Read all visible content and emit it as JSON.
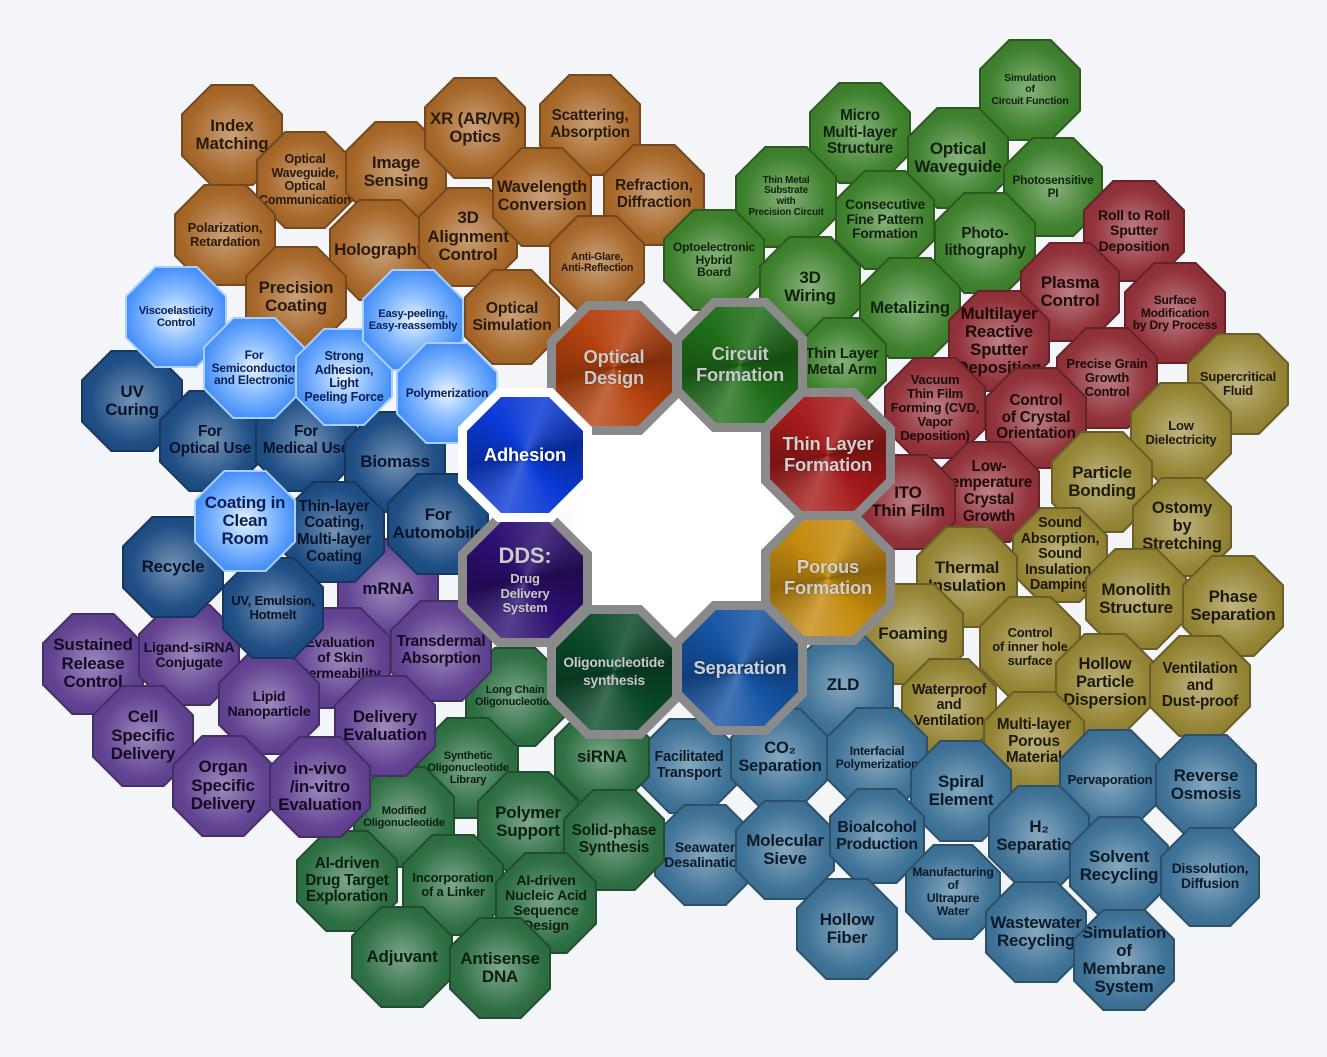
{
  "hubs": [
    {
      "label": "Optical\nDesign",
      "color": "#b5420f",
      "text": "#c9c9c9"
    },
    {
      "label": "Circuit\nFormation",
      "color": "#1f6e1a",
      "text": "#c9c9c9"
    },
    {
      "label": "Thin Layer\nFormation",
      "color": "#a51a1a",
      "text": "#d0d0d0"
    },
    {
      "label": "Porous\nFormation",
      "color": "#c48a0e",
      "text": "#d0d0d0"
    },
    {
      "label": "Separation",
      "color": "#1553a3",
      "text": "#d0d0d0"
    },
    {
      "label": "Oligonucleotide\nsynthesis",
      "color": "#0b4a2a",
      "text": "#c9c9c9"
    },
    {
      "label": "DDS:",
      "sub": "Drug\nDelivery\nSystem",
      "color": "#2c0f70",
      "text": "#c9c9c9"
    },
    {
      "label": "Adhesion",
      "color": "#0a3ad6",
      "text": "#ffffff"
    }
  ],
  "groups": [
    {
      "name": "optical",
      "color": "#a8682a",
      "text": "#2a1a0a",
      "nodes": [
        "Index\nMatching",
        "Optical\nWaveguide,\nOptical\nCommunication",
        "Image\nSensing",
        "XR (AR/VR)\nOptics",
        "Scattering,\nAbsorption",
        "Polarization,\nRetardation",
        "Holography",
        "3D\nAlignment\nControl",
        "Wavelength\nConversion",
        "Refraction,\nDiffraction",
        "Anti-Glare,\nAnti-Reflection",
        "Precision\nCoating",
        "Optical\nSimulation"
      ]
    },
    {
      "name": "circuit",
      "color": "#3f822e",
      "text": "#10220a",
      "nodes": [
        "Simulation\nof\nCircuit Function",
        "Micro\nMulti-layer\nStructure",
        "Optical\nWaveguide",
        "Photosensitive\nPI",
        "Thin Metal\nSubstrate\nwith\nPrecision Circuit",
        "Consecutive\nFine Pattern\nFormation",
        "Photo-\nlithography",
        "Optoelectronic\nHybrid\nBoard",
        "3D\nWiring",
        "Metalizing",
        "Thin Layer\nMetal Arm"
      ]
    },
    {
      "name": "thinlayer",
      "color": "#93323a",
      "text": "#1e0a0a",
      "nodes": [
        "Roll to Roll\nSputter\nDeposition",
        "Plasma\nControl",
        "Surface\nModification\nby Dry Process",
        "Multilayer\nReactive\nSputter\nDeposition",
        "Precise Grain\nGrowth\nControl",
        "Vacuum\nThin Film\nForming (CVD,\nVapor\nDeposition)",
        "Control\nof Crystal\nOrientation",
        "Low-\ntemperature\nCrystal\nGrowth",
        "ITO\nThin Film"
      ]
    },
    {
      "name": "porous",
      "color": "#968636",
      "text": "#1e1a08",
      "nodes": [
        "Supercritical\nFluid",
        "Low\nDielectricity",
        "Particle\nBonding",
        "Ostomy\nby\nStretching",
        "Sound\nAbsorption,\nSound\nInsulation,\nDamping",
        "Thermal\nInsulation",
        "Monolith\nStructure",
        "Phase\nSeparation",
        "Foaming",
        "Control\nof inner hole\nsurface",
        "Hollow\nParticle\nDispersion",
        "Ventilation\nand\nDust-proof",
        "Waterproof\nand\nVentilation",
        "Multi-layer\nPorous\nMaterial"
      ]
    },
    {
      "name": "separation",
      "color": "#3f7398",
      "text": "#0a1a28",
      "nodes": [
        "ZLD",
        "Facilitated\nTransport",
        "CO₂\nSeparation",
        "Interfacial\nPolymerization",
        "Spiral\nElement",
        "Pervaporation",
        "Reverse\nOsmosis",
        "Seawater\nDesalination",
        "Molecular\nSieve",
        "Bioalcohol\nProduction",
        "H₂\nSeparation",
        "Solvent\nRecycling",
        "Dissolution,\nDiffusion",
        "Manufacturing\nof\nUltrapure\nWater",
        "Hollow\nFiber",
        "Wastewater\nRecycling",
        "Simulation\nof\nMembrane\nSystem"
      ]
    },
    {
      "name": "oligo",
      "color": "#2f7044",
      "text": "#08200f",
      "nodes": [
        "Long Chain\nOligonucleotide",
        "Synthetic\nOligonucleotide\nLibrary",
        "siRNA",
        "Polymer\nSupport",
        "Solid-phase\nSynthesis",
        "Modified\nOligonucleotide",
        "AI-driven\nDrug Target\nExploration",
        "Incorporation\nof a Linker",
        "AI-driven\nNucleic Acid\nSequence\nDesign",
        "Adjuvant",
        "Antisense\nDNA"
      ]
    },
    {
      "name": "dds",
      "color": "#634393",
      "text": "#140a24",
      "nodes": [
        "mRNA",
        "Transdermal\nAbsorption",
        "Sustained\nRelease\nControl",
        "Ligand-siRNA\nConjugate",
        "Evaluation\nof Skin\nPermeability",
        "Lipid\nNanoparticle",
        "Cell\nSpecific\nDelivery",
        "Delivery\nEvaluation",
        "Organ\nSpecific\nDelivery",
        "in-vivo\n/in-vitro\nEvaluation"
      ]
    },
    {
      "name": "adhesion-navy",
      "color": "#1f4f86",
      "text": "#06142a",
      "nodes": [
        "UV\nCuring",
        "For\nOptical Use",
        "For\nMedical Use",
        "Biomass",
        "Thin-layer\nCoating,\nMulti-layer\nCoating",
        "For\nAutomobile",
        "Recycle",
        "UV, Emulsion,\nHotmelt"
      ]
    },
    {
      "name": "adhesion-bright",
      "color": "#2f80f5",
      "text": "#0a1e55",
      "nodes": [
        "Viscoelasticity\nControl",
        "For\nSemiconductor\nand Electronic",
        "Strong\nAdhesion,\nLight\nPeeling Force",
        "Easy-peeling,\nEasy-reassembly",
        "Polymerization",
        "Coating in\nClean\nRoom"
      ]
    }
  ]
}
